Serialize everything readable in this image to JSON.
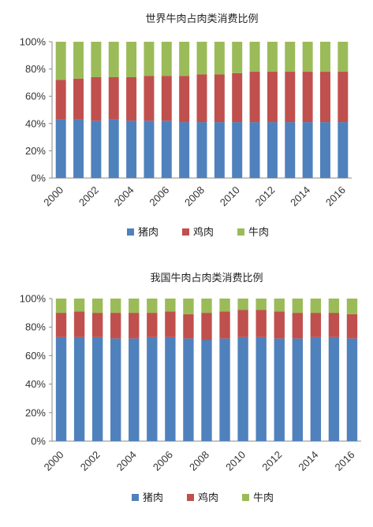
{
  "chart_data": [
    {
      "type": "bar",
      "stacked": true,
      "title": "世界牛肉占肉类消费比例",
      "categories": [
        "2000",
        "2001",
        "2002",
        "2003",
        "2004",
        "2005",
        "2006",
        "2007",
        "2008",
        "2009",
        "2010",
        "2011",
        "2012",
        "2013",
        "2014",
        "2015",
        "2016"
      ],
      "x_tick_labels": [
        "2000",
        "2002",
        "2004",
        "2006",
        "2008",
        "2010",
        "2012",
        "2014",
        "2016"
      ],
      "y_tick_labels": [
        "0%",
        "20%",
        "40%",
        "60%",
        "80%",
        "100%"
      ],
      "ylim": [
        0,
        100
      ],
      "legend_position": "bottom",
      "series": [
        {
          "name": "猪肉",
          "color": "#4f81bd",
          "values": [
            43,
            43,
            42,
            43,
            42,
            42,
            42,
            41,
            41,
            41,
            41,
            41,
            41,
            41,
            41,
            41,
            41
          ]
        },
        {
          "name": "鸡肉",
          "color": "#c0504d",
          "values": [
            29,
            30,
            32,
            31,
            32,
            33,
            33,
            34,
            35,
            35,
            36,
            37,
            37,
            37,
            37,
            37,
            37
          ]
        },
        {
          "name": "牛肉",
          "color": "#9bbb59",
          "values": [
            28,
            27,
            26,
            26,
            26,
            25,
            25,
            25,
            24,
            24,
            23,
            22,
            22,
            22,
            22,
            22,
            22
          ]
        }
      ]
    },
    {
      "type": "bar",
      "stacked": true,
      "title": "我国牛肉占肉类消费比例",
      "categories": [
        "2000",
        "2001",
        "2002",
        "2003",
        "2004",
        "2005",
        "2006",
        "2007",
        "2008",
        "2009",
        "2010",
        "2011",
        "2012",
        "2013",
        "2014",
        "2015",
        "2016"
      ],
      "x_tick_labels": [
        "2000",
        "2002",
        "2004",
        "2006",
        "2008",
        "2010",
        "2012",
        "2014",
        "2016"
      ],
      "y_tick_labels": [
        "0%",
        "20%",
        "40%",
        "60%",
        "80%",
        "100%"
      ],
      "ylim": [
        0,
        100
      ],
      "legend_position": "bottom",
      "series": [
        {
          "name": "猪肉",
          "color": "#4f81bd",
          "values": [
            73,
            73,
            73,
            72,
            72,
            73,
            73,
            72,
            71,
            72,
            73,
            73,
            72,
            72,
            73,
            73,
            72
          ]
        },
        {
          "name": "鸡肉",
          "color": "#c0504d",
          "values": [
            17,
            18,
            17,
            18,
            18,
            17,
            18,
            17,
            19,
            19,
            19,
            19,
            19,
            18,
            17,
            17,
            17
          ]
        },
        {
          "name": "牛肉",
          "color": "#9bbb59",
          "values": [
            10,
            9,
            10,
            10,
            10,
            10,
            9,
            11,
            10,
            9,
            8,
            8,
            9,
            10,
            10,
            10,
            11
          ]
        }
      ]
    }
  ]
}
